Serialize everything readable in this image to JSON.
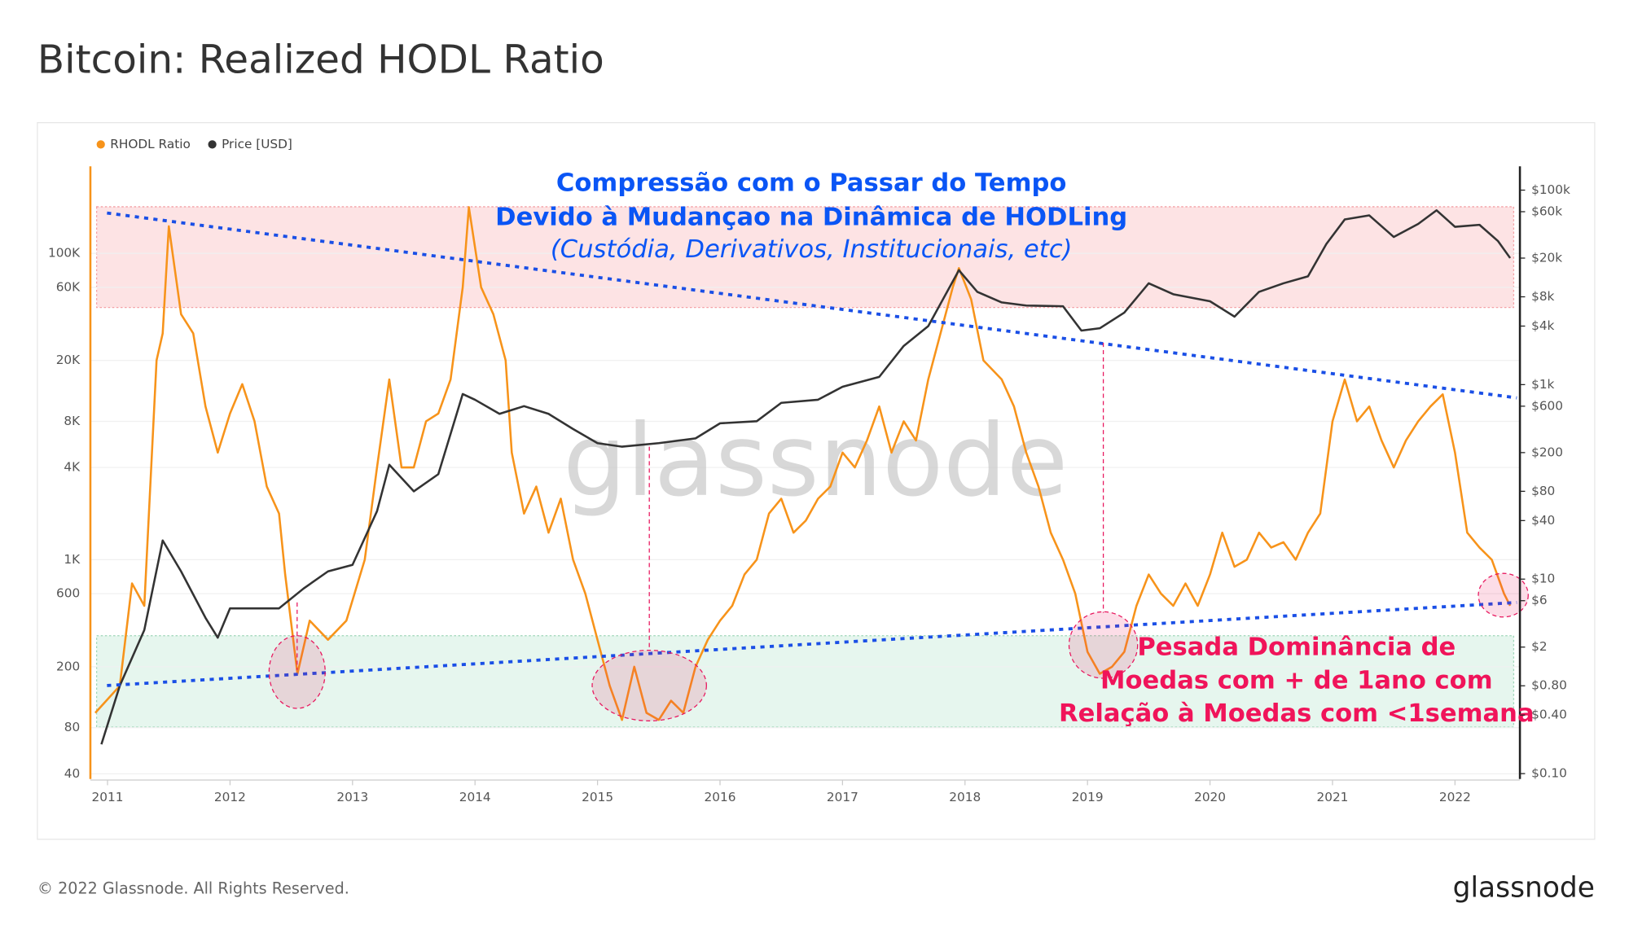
{
  "chart_data": {
    "type": "line",
    "title": "Bitcoin: Realized HODL Ratio",
    "log_scale": true,
    "grid": true,
    "legend": "top-left",
    "xlim": [
      2010.86,
      2022.53
    ],
    "xticks": [
      2011,
      2012,
      2013,
      2014,
      2015,
      2016,
      2017,
      2018,
      2019,
      2020,
      2021,
      2022
    ],
    "ylim": [
      37,
      370000
    ],
    "yticks": [
      40,
      80,
      200,
      600,
      {
        "value": 1000,
        "label": "1K"
      },
      {
        "value": 4000,
        "label": "4K"
      },
      {
        "value": 8000,
        "label": "8K"
      },
      {
        "value": 20000,
        "label": "20K"
      },
      {
        "value": 60000,
        "label": "60K"
      },
      {
        "value": 100000,
        "label": "100K"
      }
    ],
    "y2lim": [
      0.088,
      176000
    ],
    "y2ticks": [
      {
        "value": 0.1,
        "label": "$0.10"
      },
      {
        "value": 0.4,
        "label": "$0.40"
      },
      {
        "value": 0.8,
        "label": "$0.80"
      },
      {
        "value": 2,
        "label": "$2"
      },
      {
        "value": 6,
        "label": "$6"
      },
      {
        "value": 10,
        "label": "$10"
      },
      {
        "value": 40,
        "label": "$40"
      },
      {
        "value": 80,
        "label": "$80"
      },
      {
        "value": 200,
        "label": "$200"
      },
      {
        "value": 600,
        "label": "$600"
      },
      {
        "value": 1000,
        "label": "$1k"
      },
      {
        "value": 4000,
        "label": "$4k"
      },
      {
        "value": 8000,
        "label": "$8k"
      },
      {
        "value": 20000,
        "label": "$20k"
      },
      {
        "value": 60000,
        "label": "$60k"
      },
      {
        "value": 100000,
        "label": "$100k"
      }
    ],
    "series": [
      {
        "name": "RHODL Ratio",
        "color": "#f7931a",
        "x": [
          2010.9,
          2011.1,
          2011.2,
          2011.3,
          2011.4,
          2011.45,
          2011.5,
          2011.6,
          2011.7,
          2011.8,
          2011.9,
          2012.0,
          2012.1,
          2012.2,
          2012.3,
          2012.4,
          2012.45,
          2012.55,
          2012.65,
          2012.8,
          2012.95,
          2013.1,
          2013.2,
          2013.3,
          2013.4,
          2013.5,
          2013.6,
          2013.7,
          2013.8,
          2013.9,
          2013.95,
          2014.05,
          2014.15,
          2014.25,
          2014.3,
          2014.4,
          2014.5,
          2014.6,
          2014.7,
          2014.8,
          2014.9,
          2015.0,
          2015.1,
          2015.2,
          2015.3,
          2015.4,
          2015.5,
          2015.6,
          2015.7,
          2015.8,
          2015.9,
          2016.0,
          2016.1,
          2016.2,
          2016.3,
          2016.4,
          2016.5,
          2016.6,
          2016.7,
          2016.8,
          2016.9,
          2017.0,
          2017.1,
          2017.2,
          2017.3,
          2017.4,
          2017.5,
          2017.6,
          2017.7,
          2017.8,
          2017.9,
          2017.95,
          2018.05,
          2018.15,
          2018.3,
          2018.4,
          2018.5,
          2018.6,
          2018.7,
          2018.8,
          2018.9,
          2019.0,
          2019.1,
          2019.2,
          2019.3,
          2019.4,
          2019.5,
          2019.6,
          2019.7,
          2019.8,
          2019.9,
          2020.0,
          2020.1,
          2020.2,
          2020.3,
          2020.4,
          2020.5,
          2020.6,
          2020.7,
          2020.8,
          2020.9,
          2021.0,
          2021.1,
          2021.2,
          2021.3,
          2021.4,
          2021.5,
          2021.6,
          2021.7,
          2021.8,
          2021.9,
          2022.0,
          2022.1,
          2022.2,
          2022.3,
          2022.4,
          2022.45
        ],
        "values": [
          100,
          150,
          700,
          500,
          20000,
          30000,
          150000,
          40000,
          30000,
          10000,
          5000,
          9000,
          14000,
          8000,
          3000,
          2000,
          800,
          180,
          400,
          300,
          400,
          1000,
          4000,
          15000,
          4000,
          4000,
          8000,
          9000,
          15000,
          60000,
          200000,
          60000,
          40000,
          20000,
          5000,
          2000,
          3000,
          1500,
          2500,
          1000,
          600,
          300,
          150,
          90,
          200,
          100,
          90,
          120,
          100,
          200,
          300,
          400,
          500,
          800,
          1000,
          2000,
          2500,
          1500,
          1800,
          2500,
          3000,
          5000,
          4000,
          6000,
          10000,
          5000,
          8000,
          6000,
          15000,
          30000,
          60000,
          80000,
          50000,
          20000,
          15000,
          10000,
          5000,
          3000,
          1500,
          1000,
          600,
          250,
          180,
          200,
          250,
          500,
          800,
          600,
          500,
          700,
          500,
          800,
          1500,
          900,
          1000,
          1500,
          1200,
          1300,
          1000,
          1500,
          2000,
          8000,
          15000,
          8000,
          10000,
          6000,
          4000,
          6000,
          8000,
          10000,
          12000,
          5000,
          1500,
          1200,
          1000,
          600,
          500
        ]
      },
      {
        "name": "Price [USD]",
        "color": "#333333",
        "axis": "y2",
        "x": [
          2010.95,
          2011.1,
          2011.3,
          2011.45,
          2011.6,
          2011.8,
          2011.9,
          2012.0,
          2012.2,
          2012.4,
          2012.6,
          2012.8,
          2013.0,
          2013.2,
          2013.3,
          2013.5,
          2013.7,
          2013.9,
          2014.0,
          2014.2,
          2014.4,
          2014.6,
          2014.8,
          2015.0,
          2015.2,
          2015.5,
          2015.8,
          2016.0,
          2016.3,
          2016.5,
          2016.8,
          2017.0,
          2017.3,
          2017.5,
          2017.7,
          2017.95,
          2018.1,
          2018.3,
          2018.5,
          2018.8,
          2018.95,
          2019.1,
          2019.3,
          2019.5,
          2019.7,
          2020.0,
          2020.2,
          2020.4,
          2020.6,
          2020.8,
          2020.95,
          2021.1,
          2021.3,
          2021.5,
          2021.7,
          2021.85,
          2022.0,
          2022.2,
          2022.35,
          2022.45
        ],
        "values": [
          0.2,
          0.8,
          3,
          25,
          12,
          4,
          2.5,
          5,
          5,
          5,
          8,
          12,
          14,
          50,
          150,
          80,
          120,
          800,
          700,
          500,
          600,
          500,
          350,
          250,
          230,
          250,
          280,
          400,
          420,
          650,
          700,
          950,
          1200,
          2500,
          4000,
          15000,
          9000,
          7000,
          6500,
          6400,
          3600,
          3800,
          5500,
          11000,
          8500,
          7200,
          5000,
          9000,
          11000,
          13000,
          28000,
          50000,
          55000,
          33000,
          45000,
          62000,
          42000,
          44000,
          30000,
          20000
        ]
      }
    ],
    "annotations": {
      "top": [
        "Compressão com o Passar do Tempo",
        "Devido à Mudançao na Dinâmica de HODLing",
        "(Custódia, Derivativos, Institucionais, etc)"
      ],
      "bottom": [
        "Pesada Dominância de",
        "Moedas com + de 1ano com",
        "Relação à Moedas com <1semana"
      ]
    },
    "watermark": "glassnode",
    "footer": "© 2022 Glassnode. All Rights Reserved.",
    "logo": "glassnode"
  }
}
